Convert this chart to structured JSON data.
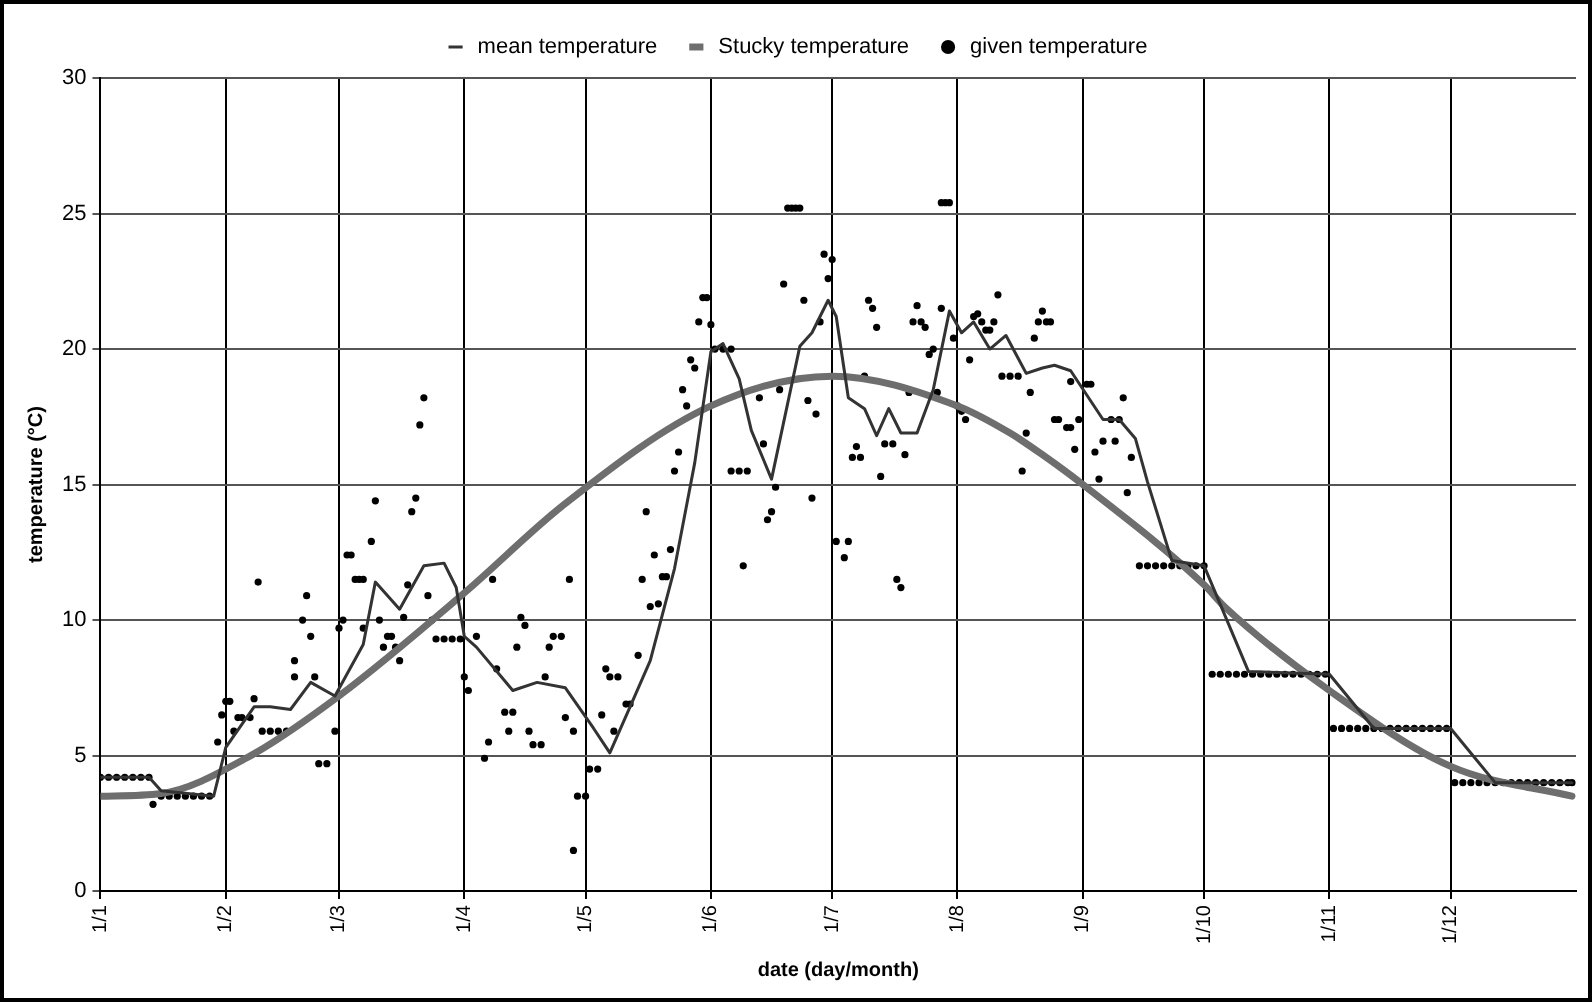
{
  "chart_data": {
    "type": "line",
    "xlabel": "date (day/month)",
    "ylabel": "temperature (°C)",
    "xlim": [
      "--01-01",
      "--12-31"
    ],
    "xticks": [
      {
        "value": "--01-01",
        "label": "1/1"
      },
      {
        "value": "--02-01",
        "label": "1/2"
      },
      {
        "value": "--03-01",
        "label": "1/3"
      },
      {
        "value": "--04-01",
        "label": "1/4"
      },
      {
        "value": "--05-01",
        "label": "1/5"
      },
      {
        "value": "--06-01",
        "label": "1/6"
      },
      {
        "value": "--07-01",
        "label": "1/7"
      },
      {
        "value": "--08-01",
        "label": "1/8"
      },
      {
        "value": "--09-01",
        "label": "1/9"
      },
      {
        "value": "--10-01",
        "label": "1/10"
      },
      {
        "value": "--11-01",
        "label": "1/11"
      },
      {
        "value": "--12-01",
        "label": "1/12"
      }
    ],
    "ylim": [
      0,
      30
    ],
    "yticks": [
      0,
      5,
      10,
      15,
      20,
      25,
      30
    ],
    "grid": true,
    "legend": "top",
    "series": [
      {
        "name": "mean temperature",
        "color": "#333333",
        "marker": "none",
        "x": [
          "--01-01",
          "--01-13",
          "--01-16",
          "--01-29",
          "--02-01",
          "--02-08",
          "--02-12",
          "--02-17",
          "--02-22",
          "--02-28",
          "--03-07",
          "--03-10",
          "--03-16",
          "--03-22",
          "--03-27",
          "--03-30",
          "--04-01",
          "--04-04",
          "--04-13",
          "--04-19",
          "--04-26",
          "--05-03",
          "--05-07",
          "--05-12",
          "--05-17",
          "--05-23",
          "--05-28",
          "--06-01",
          "--06-04",
          "--06-08",
          "--06-11",
          "--06-16",
          "--06-23",
          "--06-26",
          "--06-30",
          "--07-02",
          "--07-05",
          "--07-09",
          "--07-12",
          "--07-15",
          "--07-18",
          "--07-22",
          "--07-26",
          "--07-30",
          "--08-02",
          "--08-05",
          "--08-09",
          "--08-13",
          "--08-18",
          "--08-22",
          "--08-25",
          "--08-29",
          "--09-06",
          "--09-10",
          "--09-14",
          "--09-17",
          "--09-23",
          "--10-01",
          "--10-12",
          "--11-01",
          "--11-12",
          "--12-01",
          "--12-12",
          "--12-31"
        ],
        "values": [
          4.2,
          4.2,
          3.7,
          3.5,
          5.3,
          6.8,
          6.8,
          6.7,
          7.7,
          7.2,
          9.1,
          11.4,
          10.4,
          12.0,
          12.1,
          11.2,
          9.4,
          9.0,
          7.4,
          7.7,
          7.5,
          6.0,
          5.1,
          6.8,
          8.5,
          11.9,
          15.8,
          19.9,
          20.2,
          18.9,
          17.0,
          15.2,
          20.1,
          20.6,
          21.8,
          21.2,
          18.2,
          17.8,
          16.8,
          17.8,
          16.9,
          16.9,
          18.5,
          21.4,
          20.6,
          21.0,
          20.0,
          20.5,
          19.1,
          19.3,
          19.4,
          19.2,
          17.4,
          17.4,
          16.7,
          15.1,
          12.2,
          12.0,
          8.1,
          8.0,
          6.0,
          6.0,
          4.0,
          4.0
        ]
      },
      {
        "name": "Stucky temperature",
        "color": "#6e6e6e",
        "marker": "none",
        "x": [
          "--01-01",
          "--01-16",
          "--02-06",
          "--03-01",
          "--04-01",
          "--04-26",
          "--06-01",
          "--07-01",
          "--08-01",
          "--08-14",
          "--08-22",
          "--09-01",
          "--10-01",
          "--10-06",
          "--11-01",
          "--12-01",
          "--12-31"
        ],
        "values": [
          3.5,
          3.6,
          4.9,
          7.2,
          11.0,
          14.3,
          17.9,
          19.0,
          17.9,
          16.9,
          16.1,
          15.0,
          11.3,
          10.5,
          7.4,
          4.6,
          3.5
        ]
      },
      {
        "name": "given temperature",
        "type": "scatter",
        "color": "#000000",
        "marker": "circle",
        "x": [
          "--01-01",
          "--01-03",
          "--01-05",
          "--01-07",
          "--01-09",
          "--01-11",
          "--01-13",
          "--01-14",
          "--01-16",
          "--01-18",
          "--01-20",
          "--01-22",
          "--01-24",
          "--01-26",
          "--01-28",
          "--01-30",
          "--01-31",
          "--02-01",
          "--02-02",
          "--02-03",
          "--02-04",
          "--02-05",
          "--02-07",
          "--02-08",
          "--02-09",
          "--02-10",
          "--02-12",
          "--02-14",
          "--02-16",
          "--02-18",
          "--02-18",
          "--02-20",
          "--02-21",
          "--02-22",
          "--02-23",
          "--02-24",
          "--02-26",
          "--02-28",
          "--03-01",
          "--03-02",
          "--03-03",
          "--03-04",
          "--03-05",
          "--03-06",
          "--03-07",
          "--03-07",
          "--03-09",
          "--03-10",
          "--03-11",
          "--03-12",
          "--03-13",
          "--03-14",
          "--03-15",
          "--03-16",
          "--03-17",
          "--03-18",
          "--03-19",
          "--03-20",
          "--03-21",
          "--03-22",
          "--03-23",
          "--03-24",
          "--03-25",
          "--03-27",
          "--03-29",
          "--03-31",
          "--04-01",
          "--04-02",
          "--04-04",
          "--04-06",
          "--04-07",
          "--04-08",
          "--04-09",
          "--04-11",
          "--04-12",
          "--04-13",
          "--04-14",
          "--04-15",
          "--04-16",
          "--04-17",
          "--04-18",
          "--04-20",
          "--04-21",
          "--04-22",
          "--04-23",
          "--04-25",
          "--04-26",
          "--04-27",
          "--04-28",
          "--04-28",
          "--04-29",
          "--05-01",
          "--05-02",
          "--05-04",
          "--05-05",
          "--05-06",
          "--05-07",
          "--05-08",
          "--05-09",
          "--05-11",
          "--05-12",
          "--05-14",
          "--05-15",
          "--05-16",
          "--05-17",
          "--05-18",
          "--05-19",
          "--05-20",
          "--05-21",
          "--05-22",
          "--05-23",
          "--05-24",
          "--05-25",
          "--05-26",
          "--05-27",
          "--05-28",
          "--05-29",
          "--05-30",
          "--05-31",
          "--06-01",
          "--06-02",
          "--06-04",
          "--06-06",
          "--06-06",
          "--06-08",
          "--06-09",
          "--06-10",
          "--06-13",
          "--06-14",
          "--06-15",
          "--06-16",
          "--06-17",
          "--06-18",
          "--06-19",
          "--06-20",
          "--06-21",
          "--06-22",
          "--06-23",
          "--06-24",
          "--06-25",
          "--06-26",
          "--06-27",
          "--06-28",
          "--06-29",
          "--06-30",
          "--07-01",
          "--07-02",
          "--07-04",
          "--07-05",
          "--07-06",
          "--07-07",
          "--07-08",
          "--07-09",
          "--07-10",
          "--07-11",
          "--07-12",
          "--07-13",
          "--07-14",
          "--07-16",
          "--07-17",
          "--07-18",
          "--07-19",
          "--07-20",
          "--07-21",
          "--07-22",
          "--07-23",
          "--07-24",
          "--07-25",
          "--07-26",
          "--07-27",
          "--07-28",
          "--07-28",
          "--07-29",
          "--07-30",
          "--07-31",
          "--08-01",
          "--08-02",
          "--08-03",
          "--08-04",
          "--08-05",
          "--08-06",
          "--08-07",
          "--08-08",
          "--08-09",
          "--08-10",
          "--08-11",
          "--08-12",
          "--08-14",
          "--08-16",
          "--08-17",
          "--08-18",
          "--08-19",
          "--08-20",
          "--08-21",
          "--08-22",
          "--08-23",
          "--08-24",
          "--08-25",
          "--08-26",
          "--08-28",
          "--08-29",
          "--08-29",
          "--08-30",
          "--08-31",
          "--09-02",
          "--09-03",
          "--09-04",
          "--09-05",
          "--09-06",
          "--09-08",
          "--09-09",
          "--09-10",
          "--09-11",
          "--09-12",
          "--09-13",
          "--09-15",
          "--09-17",
          "--09-19",
          "--09-21",
          "--09-23",
          "--09-25",
          "--09-27",
          "--09-29",
          "--10-01",
          "--10-03",
          "--10-05",
          "--10-07",
          "--10-09",
          "--10-11",
          "--10-13",
          "--10-15",
          "--10-17",
          "--10-19",
          "--10-21",
          "--10-23",
          "--10-25",
          "--10-27",
          "--10-29",
          "--10-31",
          "--11-02",
          "--11-04",
          "--11-06",
          "--11-08",
          "--11-10",
          "--11-12",
          "--11-14",
          "--11-16",
          "--11-18",
          "--11-20",
          "--11-22",
          "--11-24",
          "--11-26",
          "--11-28",
          "--11-30",
          "--12-02",
          "--12-04",
          "--12-06",
          "--12-08",
          "--12-10",
          "--12-12",
          "--12-14",
          "--12-16",
          "--12-18",
          "--12-20",
          "--12-22",
          "--12-24",
          "--12-26",
          "--12-28",
          "--12-30",
          "--12-31"
        ],
        "values": [
          4.2,
          4.2,
          4.2,
          4.2,
          4.2,
          4.2,
          4.2,
          3.2,
          3.5,
          3.5,
          3.5,
          3.5,
          3.5,
          3.5,
          3.5,
          5.5,
          6.5,
          7.0,
          7.0,
          5.9,
          6.4,
          6.4,
          6.4,
          7.1,
          11.4,
          5.9,
          5.9,
          5.9,
          5.9,
          7.9,
          8.5,
          10.0,
          10.9,
          9.4,
          7.9,
          4.7,
          4.7,
          5.9,
          9.7,
          10.0,
          12.4,
          12.4,
          11.5,
          11.5,
          11.5,
          9.7,
          12.9,
          14.4,
          10.0,
          9.0,
          9.4,
          9.4,
          9.0,
          8.5,
          10.1,
          11.3,
          14.0,
          14.5,
          17.2,
          18.2,
          10.9,
          10.0,
          9.3,
          9.3,
          9.3,
          9.3,
          7.9,
          7.4,
          9.4,
          4.9,
          5.5,
          11.5,
          8.2,
          6.6,
          5.9,
          6.6,
          9.0,
          10.1,
          9.8,
          5.9,
          5.4,
          5.4,
          7.9,
          9.0,
          9.4,
          9.4,
          6.4,
          11.5,
          5.9,
          1.5,
          3.5,
          3.5,
          4.5,
          4.5,
          6.5,
          8.2,
          7.9,
          5.9,
          7.9,
          6.9,
          6.9,
          8.7,
          11.5,
          14.0,
          10.5,
          12.4,
          10.6,
          11.6,
          11.6,
          12.6,
          15.5,
          16.2,
          18.5,
          17.9,
          19.6,
          19.3,
          21.0,
          21.9,
          21.9,
          20.9,
          20.0,
          20.0,
          20.0,
          15.5,
          15.5,
          12.0,
          15.5,
          18.2,
          16.5,
          13.7,
          14.0,
          14.9,
          18.5,
          22.4,
          25.2,
          25.2,
          25.2,
          25.2,
          21.8,
          18.1,
          14.5,
          17.6,
          21.0,
          23.5,
          22.6,
          23.3,
          12.9,
          12.3,
          12.9,
          16.0,
          16.4,
          16.0,
          19.0,
          21.8,
          21.5,
          20.8,
          15.3,
          16.5,
          16.5,
          11.5,
          11.2,
          16.1,
          18.4,
          21.0,
          21.6,
          21.0,
          20.8,
          19.8,
          20.0,
          18.4,
          21.5,
          25.4,
          25.4,
          25.4,
          20.4,
          17.9,
          17.7,
          17.4,
          19.6,
          21.2,
          21.3,
          21.0,
          20.7,
          20.7,
          21.0,
          22.0,
          19.0,
          19.0,
          19.0,
          15.5,
          16.9,
          18.4,
          20.4,
          21.0,
          21.4,
          21.0,
          21.0,
          17.4,
          17.4,
          17.1,
          17.1,
          18.8,
          16.3,
          17.4,
          18.7,
          18.7,
          16.2,
          15.2,
          16.6,
          17.4,
          16.6,
          17.4,
          18.2,
          14.7,
          16.0,
          12.0,
          12.0,
          12.0,
          12.0,
          12.0,
          12.0,
          12.0,
          12.0,
          12.0,
          8.0,
          8.0,
          8.0,
          8.0,
          8.0,
          8.0,
          8.0,
          8.0,
          8.0,
          8.0,
          8.0,
          8.0,
          8.0,
          8.0,
          8.0,
          6.0,
          6.0,
          6.0,
          6.0,
          6.0,
          6.0,
          6.0,
          6.0,
          6.0,
          6.0,
          6.0,
          6.0,
          6.0,
          6.0,
          6.0,
          4.0,
          4.0,
          4.0,
          4.0,
          4.0,
          4.0,
          4.0,
          4.0,
          4.0,
          4.0,
          4.0,
          4.0,
          4.0,
          4.0,
          4.0,
          4.0
        ]
      }
    ]
  }
}
